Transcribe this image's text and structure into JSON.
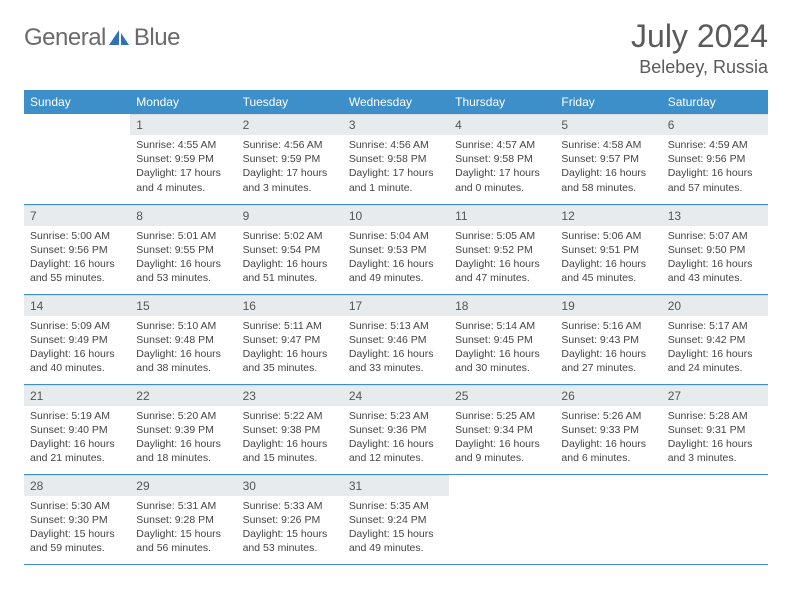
{
  "brand": {
    "name_a": "General",
    "name_b": "Blue"
  },
  "title": "July 2024",
  "location": "Belebey, Russia",
  "colors": {
    "header_bg": "#3d8fc9",
    "header_fg": "#ffffff",
    "daynum_bg": "#e8ebed",
    "text": "#444444",
    "rule": "#3d8fc9",
    "logo_gray": "#6a6a6a",
    "logo_blue": "#2f72b6"
  },
  "weekdays": [
    "Sunday",
    "Monday",
    "Tuesday",
    "Wednesday",
    "Thursday",
    "Friday",
    "Saturday"
  ],
  "layout": {
    "cols": 7,
    "rows": 5,
    "first_weekday_offset": 1
  },
  "days": [
    {
      "n": 1,
      "sunrise": "4:55 AM",
      "sunset": "9:59 PM",
      "daylight": "17 hours and 4 minutes."
    },
    {
      "n": 2,
      "sunrise": "4:56 AM",
      "sunset": "9:59 PM",
      "daylight": "17 hours and 3 minutes."
    },
    {
      "n": 3,
      "sunrise": "4:56 AM",
      "sunset": "9:58 PM",
      "daylight": "17 hours and 1 minute."
    },
    {
      "n": 4,
      "sunrise": "4:57 AM",
      "sunset": "9:58 PM",
      "daylight": "17 hours and 0 minutes."
    },
    {
      "n": 5,
      "sunrise": "4:58 AM",
      "sunset": "9:57 PM",
      "daylight": "16 hours and 58 minutes."
    },
    {
      "n": 6,
      "sunrise": "4:59 AM",
      "sunset": "9:56 PM",
      "daylight": "16 hours and 57 minutes."
    },
    {
      "n": 7,
      "sunrise": "5:00 AM",
      "sunset": "9:56 PM",
      "daylight": "16 hours and 55 minutes."
    },
    {
      "n": 8,
      "sunrise": "5:01 AM",
      "sunset": "9:55 PM",
      "daylight": "16 hours and 53 minutes."
    },
    {
      "n": 9,
      "sunrise": "5:02 AM",
      "sunset": "9:54 PM",
      "daylight": "16 hours and 51 minutes."
    },
    {
      "n": 10,
      "sunrise": "5:04 AM",
      "sunset": "9:53 PM",
      "daylight": "16 hours and 49 minutes."
    },
    {
      "n": 11,
      "sunrise": "5:05 AM",
      "sunset": "9:52 PM",
      "daylight": "16 hours and 47 minutes."
    },
    {
      "n": 12,
      "sunrise": "5:06 AM",
      "sunset": "9:51 PM",
      "daylight": "16 hours and 45 minutes."
    },
    {
      "n": 13,
      "sunrise": "5:07 AM",
      "sunset": "9:50 PM",
      "daylight": "16 hours and 43 minutes."
    },
    {
      "n": 14,
      "sunrise": "5:09 AM",
      "sunset": "9:49 PM",
      "daylight": "16 hours and 40 minutes."
    },
    {
      "n": 15,
      "sunrise": "5:10 AM",
      "sunset": "9:48 PM",
      "daylight": "16 hours and 38 minutes."
    },
    {
      "n": 16,
      "sunrise": "5:11 AM",
      "sunset": "9:47 PM",
      "daylight": "16 hours and 35 minutes."
    },
    {
      "n": 17,
      "sunrise": "5:13 AM",
      "sunset": "9:46 PM",
      "daylight": "16 hours and 33 minutes."
    },
    {
      "n": 18,
      "sunrise": "5:14 AM",
      "sunset": "9:45 PM",
      "daylight": "16 hours and 30 minutes."
    },
    {
      "n": 19,
      "sunrise": "5:16 AM",
      "sunset": "9:43 PM",
      "daylight": "16 hours and 27 minutes."
    },
    {
      "n": 20,
      "sunrise": "5:17 AM",
      "sunset": "9:42 PM",
      "daylight": "16 hours and 24 minutes."
    },
    {
      "n": 21,
      "sunrise": "5:19 AM",
      "sunset": "9:40 PM",
      "daylight": "16 hours and 21 minutes."
    },
    {
      "n": 22,
      "sunrise": "5:20 AM",
      "sunset": "9:39 PM",
      "daylight": "16 hours and 18 minutes."
    },
    {
      "n": 23,
      "sunrise": "5:22 AM",
      "sunset": "9:38 PM",
      "daylight": "16 hours and 15 minutes."
    },
    {
      "n": 24,
      "sunrise": "5:23 AM",
      "sunset": "9:36 PM",
      "daylight": "16 hours and 12 minutes."
    },
    {
      "n": 25,
      "sunrise": "5:25 AM",
      "sunset": "9:34 PM",
      "daylight": "16 hours and 9 minutes."
    },
    {
      "n": 26,
      "sunrise": "5:26 AM",
      "sunset": "9:33 PM",
      "daylight": "16 hours and 6 minutes."
    },
    {
      "n": 27,
      "sunrise": "5:28 AM",
      "sunset": "9:31 PM",
      "daylight": "16 hours and 3 minutes."
    },
    {
      "n": 28,
      "sunrise": "5:30 AM",
      "sunset": "9:30 PM",
      "daylight": "15 hours and 59 minutes."
    },
    {
      "n": 29,
      "sunrise": "5:31 AM",
      "sunset": "9:28 PM",
      "daylight": "15 hours and 56 minutes."
    },
    {
      "n": 30,
      "sunrise": "5:33 AM",
      "sunset": "9:26 PM",
      "daylight": "15 hours and 53 minutes."
    },
    {
      "n": 31,
      "sunrise": "5:35 AM",
      "sunset": "9:24 PM",
      "daylight": "15 hours and 49 minutes."
    }
  ],
  "labels": {
    "sunrise": "Sunrise:",
    "sunset": "Sunset:",
    "daylight": "Daylight:"
  }
}
